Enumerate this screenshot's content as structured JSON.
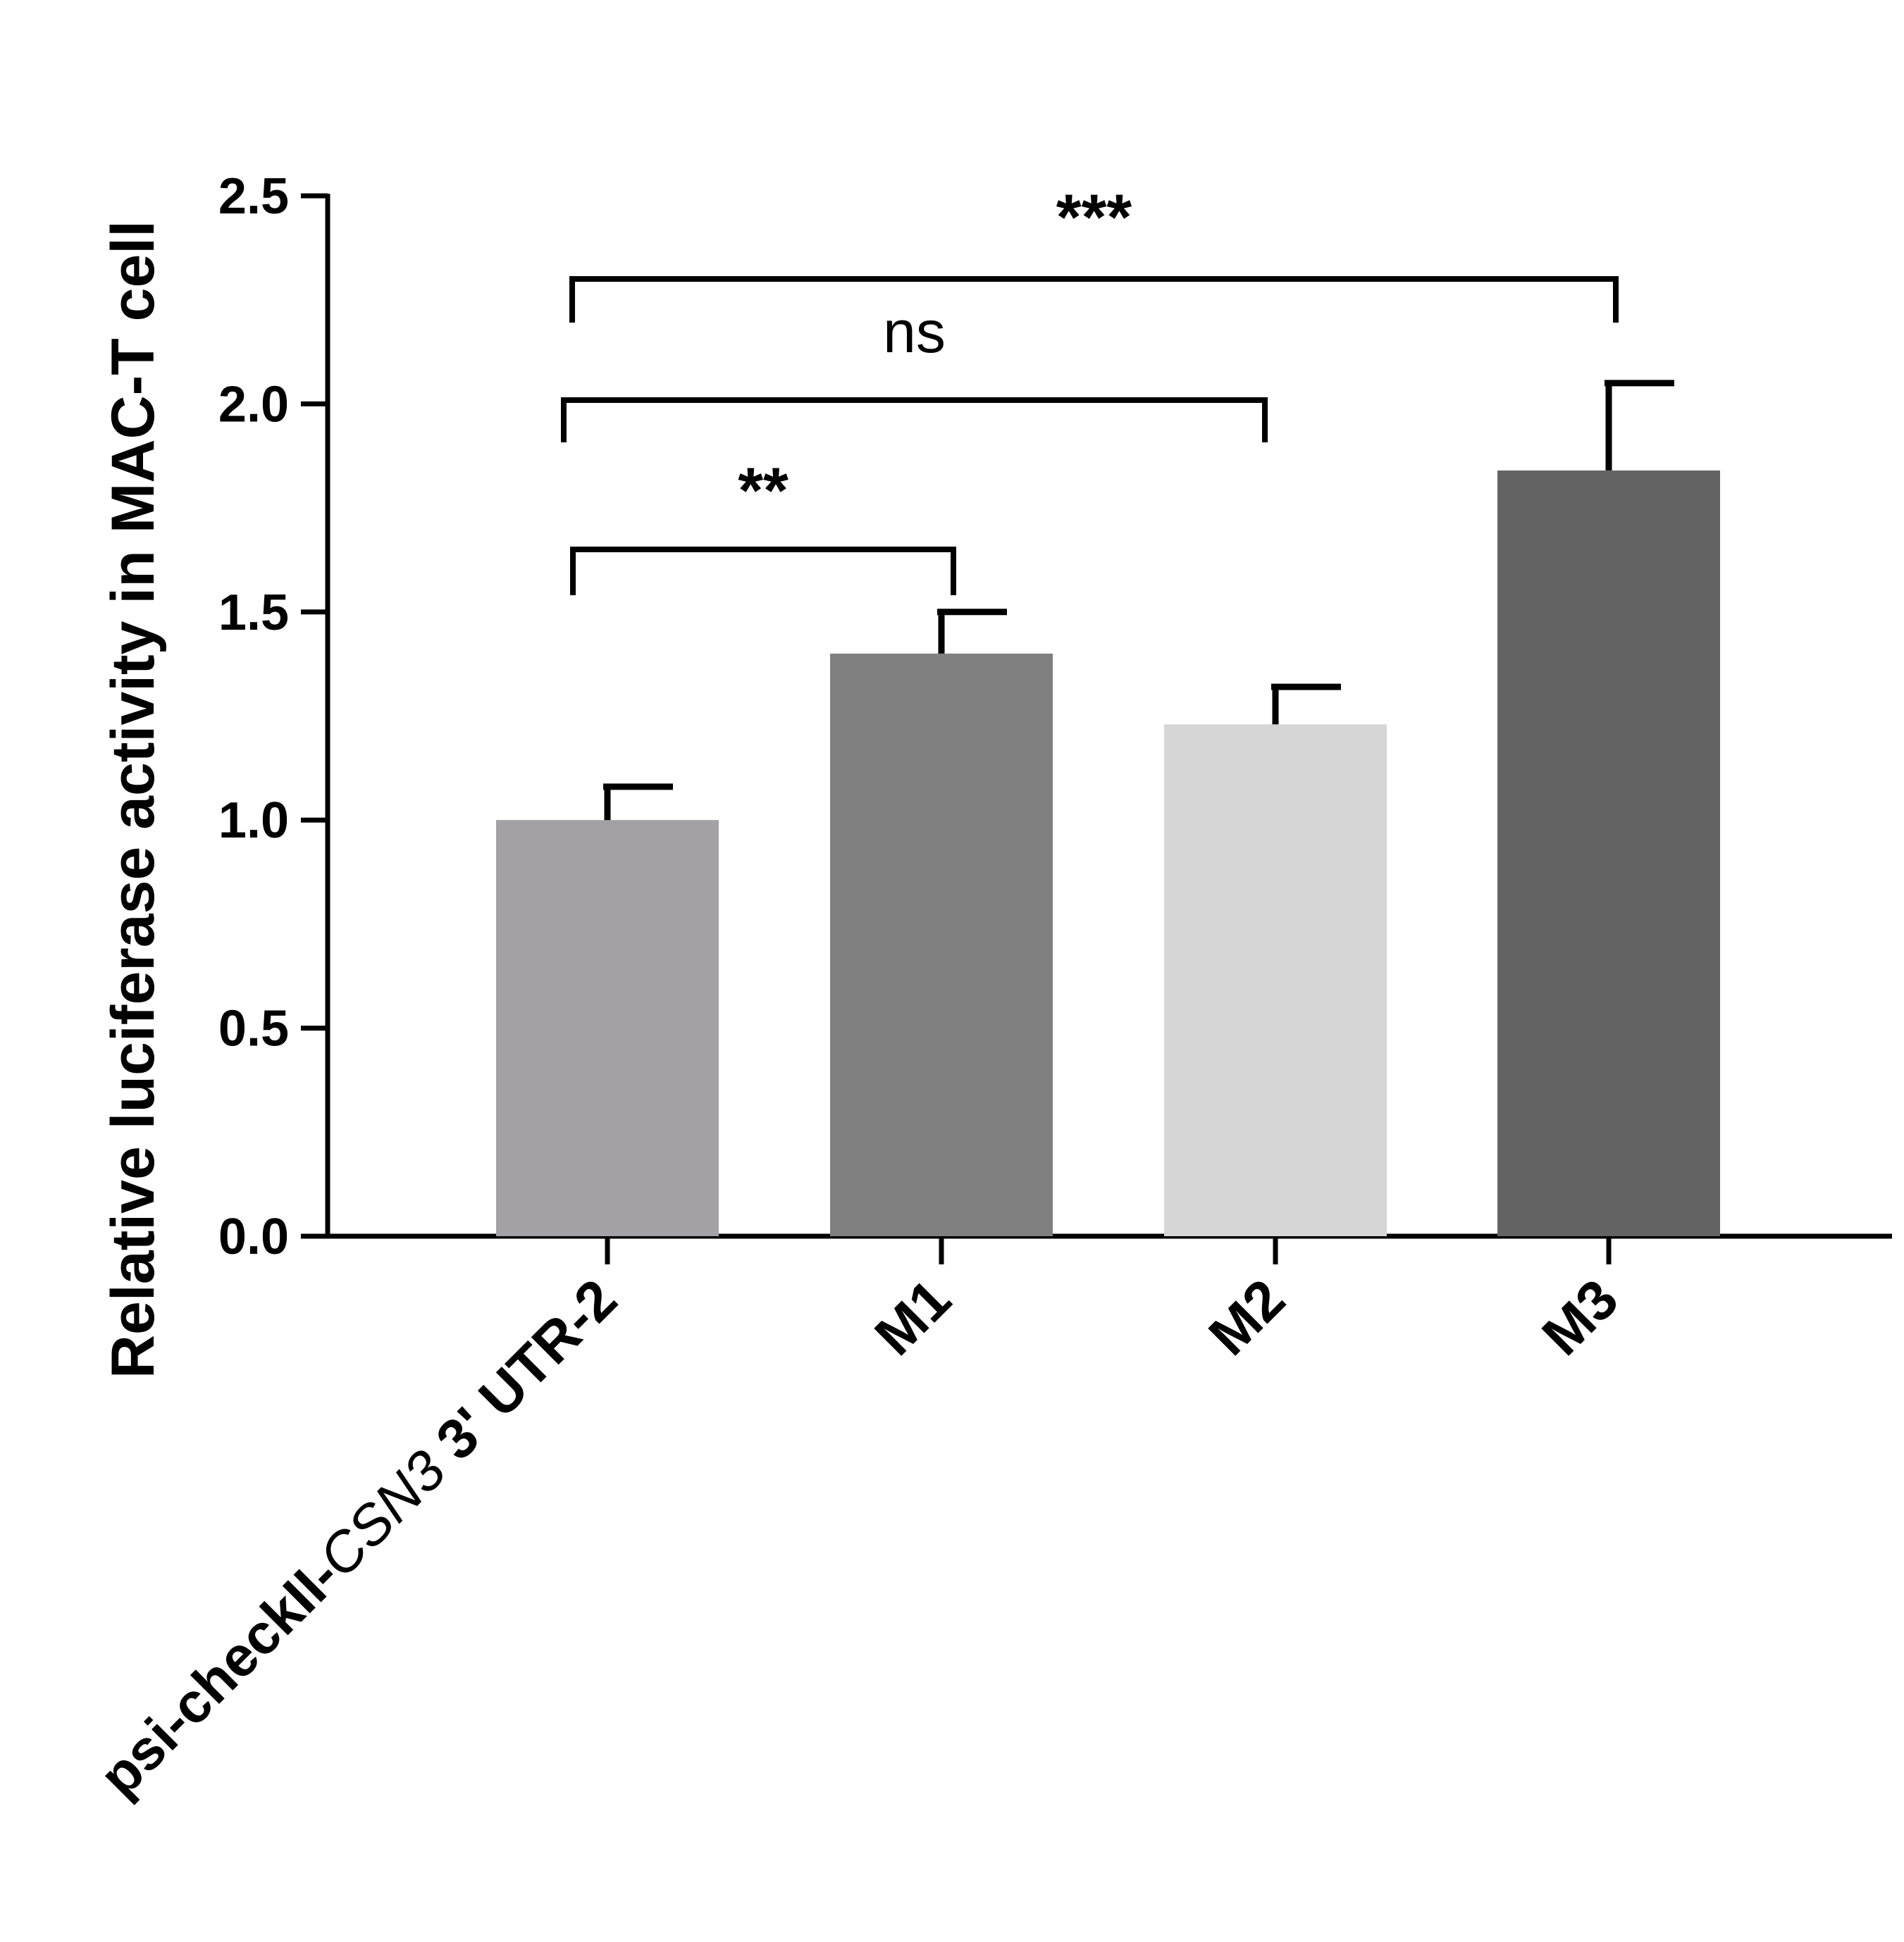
{
  "chart_data": {
    "type": "bar",
    "title": "",
    "xlabel": "",
    "ylabel": "Relative luciferase activity in MAC-T cell",
    "ylim": [
      0,
      2.5
    ],
    "yticks": [
      "0.0",
      "0.5",
      "1.0",
      "1.5",
      "2.0",
      "2.5"
    ],
    "categories": [
      {
        "parts": [
          {
            "text": "psi-checkII-",
            "italic": false
          },
          {
            "text": "CSN3",
            "italic": true
          },
          {
            "text": " 3' UTR-2",
            "italic": false
          }
        ]
      },
      {
        "parts": [
          {
            "text": "M1",
            "italic": false
          }
        ]
      },
      {
        "parts": [
          {
            "text": "M2",
            "italic": false
          }
        ]
      },
      {
        "parts": [
          {
            "text": "M3",
            "italic": false
          }
        ]
      }
    ],
    "values": [
      1.0,
      1.4,
      1.23,
      1.84
    ],
    "errors": [
      0.08,
      0.1,
      0.09,
      0.21
    ],
    "colors": [
      "#a3a1a6",
      "#808080",
      "#d6d6d6",
      "#636363"
    ],
    "significance": [
      {
        "from": 0,
        "to": 1,
        "label": "**"
      },
      {
        "from": 0,
        "to": 2,
        "label": "ns"
      },
      {
        "from": 0,
        "to": 3,
        "label": "***"
      }
    ]
  }
}
